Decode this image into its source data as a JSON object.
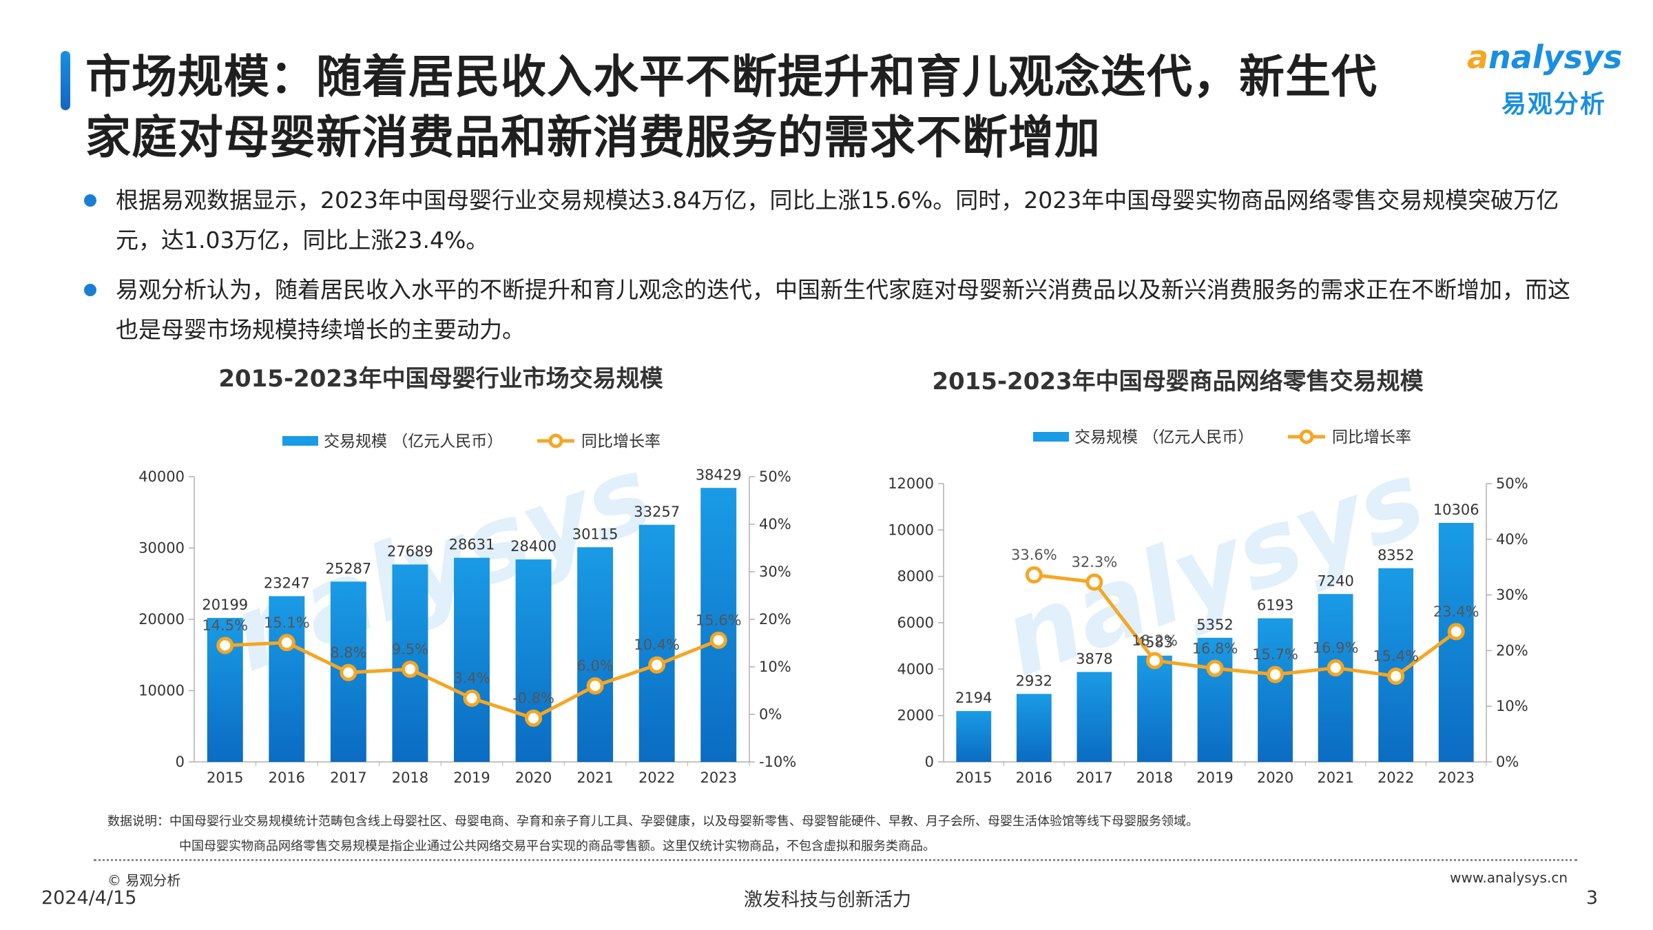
{
  "title": {
    "line1": "市场规模：随着居民收入水平不断提升和育儿观念迭代，新生代",
    "line2": "家庭对母婴新消费品和新消费服务的需求不断增加"
  },
  "logo": {
    "en_first": "a",
    "en_rest": "nalysys",
    "cn": "易观分析"
  },
  "bullets": [
    "根据易观数据显示，2023年中国母婴行业交易规模达3.84万亿，同比上涨15.6%。同时，2023年中国母婴实物商品网络零售交易规模突破万亿元，达1.03万亿，同比上涨23.4%。",
    "易观分析认为，随着居民收入水平的不断提升和育儿观念的迭代，中国新生代家庭对母婴新兴消费品以及新兴消费服务的需求正在不断增加，而这也是母婴市场规模持续增长的主要动力。"
  ],
  "chart_data": [
    {
      "type": "bar+line",
      "title": "2015-2023年中国母婴行业市场交易规模",
      "legend": [
        "交易规模 （亿元人民币）",
        "同比增长率"
      ],
      "legend_placement": "top",
      "categories": [
        "2015",
        "2016",
        "2017",
        "2018",
        "2019",
        "2020",
        "2021",
        "2022",
        "2023"
      ],
      "series": [
        {
          "name": "交易规模 （亿元人民币）",
          "kind": "bar",
          "axis": "left",
          "values": [
            20199,
            23247,
            25287,
            27689,
            28631,
            28400,
            30115,
            33257,
            38429
          ],
          "labels": [
            "20199",
            "23247",
            "25287",
            "27689",
            "28631",
            "28400",
            "30115",
            "33257",
            "38429"
          ]
        },
        {
          "name": "同比增长率",
          "kind": "line",
          "axis": "right",
          "values": [
            14.5,
            15.1,
            8.8,
            9.5,
            3.4,
            -0.8,
            6.0,
            10.4,
            15.6
          ],
          "labels": [
            "14.5%",
            "15.1%",
            "8.8%",
            "9.5%",
            "3.4%",
            "-0.8%",
            "6.0%",
            "10.4%",
            "15.6%"
          ]
        }
      ],
      "y_left": {
        "min": 0,
        "max": 40000,
        "ticks": [
          "0",
          "10000",
          "20000",
          "30000",
          "40000"
        ]
      },
      "y_right": {
        "min": -10,
        "max": 50,
        "ticks": [
          "-10%",
          "0%",
          "10%",
          "20%",
          "30%",
          "40%",
          "50%"
        ]
      },
      "grid": false
    },
    {
      "type": "bar+line",
      "title": "2015-2023年中国母婴商品网络零售交易规模",
      "legend": [
        "交易规模 （亿元人民币）",
        "同比增长率"
      ],
      "legend_placement": "top",
      "categories": [
        "2015",
        "2016",
        "2017",
        "2018",
        "2019",
        "2020",
        "2021",
        "2022",
        "2023"
      ],
      "series": [
        {
          "name": "交易规模 （亿元人民币）",
          "kind": "bar",
          "axis": "left",
          "values": [
            2194,
            2932,
            3878,
            4583,
            5352,
            6193,
            7240,
            8352,
            10306
          ],
          "labels": [
            "2194",
            "2932",
            "3878",
            "4583",
            "5352",
            "6193",
            "7240",
            "8352",
            "10306"
          ]
        },
        {
          "name": "同比增长率",
          "kind": "line",
          "axis": "right",
          "values": [
            null,
            33.6,
            32.3,
            18.2,
            16.8,
            15.7,
            16.9,
            15.4,
            23.4
          ],
          "labels": [
            "",
            "33.6%",
            "32.3%",
            "18.2%",
            "16.8%",
            "15.7%",
            "16.9%",
            "15.4%",
            "23.4%"
          ]
        }
      ],
      "y_left": {
        "min": 0,
        "max": 12000,
        "ticks": [
          "0",
          "2000",
          "4000",
          "6000",
          "8000",
          "10000",
          "12000"
        ]
      },
      "y_right": {
        "min": 0,
        "max": 50,
        "ticks": [
          "0%",
          "10%",
          "20%",
          "30%",
          "40%",
          "50%"
        ]
      },
      "grid": false
    }
  ],
  "notes": {
    "line1": "数据说明：中国母婴行业交易规模统计范畴包含线上母婴社区、母婴电商、孕育和亲子育儿工具、孕婴健康，以及母婴新零售、母婴智能硬件、早教、月子会所、母婴生活体验馆等线下母婴服务领域。",
    "line2": "中国母婴实物商品网络零售交易规模是指企业通过公共网络交易平台实现的商品零售额。这里仅统计实物商品，不包含虚拟和服务类商品。"
  },
  "footer": {
    "copyright": "© 易观分析",
    "website": "www.analysys.cn",
    "date": "2024/4/15",
    "slogan": "激发科技与创新活力",
    "page": "3"
  },
  "colors": {
    "bar_top": "#1a9be6",
    "bar_bottom": "#0b6cc2",
    "line": "#f5a623",
    "accent": "#1a7fd4",
    "label": "#555555"
  }
}
